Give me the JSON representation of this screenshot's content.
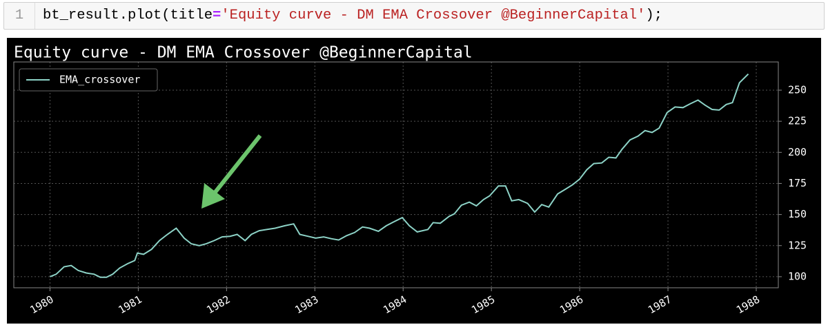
{
  "code": {
    "line_number": "1",
    "tokens": [
      "bt_result.plot(title",
      "=",
      "'Equity curve - DM EMA Crossover @BeginnerCapital'",
      ");"
    ]
  },
  "chart_data": {
    "type": "line",
    "title": "Equity curve - DM EMA Crossover @BeginnerCapital",
    "x": [
      1980.0,
      1980.07,
      1980.16,
      1980.24,
      1980.32,
      1980.41,
      1980.5,
      1980.57,
      1980.64,
      1980.71,
      1980.79,
      1980.88,
      1980.96,
      1980.99,
      1981.06,
      1981.15,
      1981.24,
      1981.33,
      1981.43,
      1981.52,
      1981.6,
      1981.69,
      1981.77,
      1981.86,
      1981.95,
      1982.04,
      1982.12,
      1982.21,
      1982.28,
      1982.37,
      1982.46,
      1982.55,
      1982.66,
      1982.76,
      1982.83,
      1982.92,
      1983.01,
      1983.1,
      1983.19,
      1983.27,
      1983.36,
      1983.45,
      1983.54,
      1983.62,
      1983.72,
      1983.81,
      1983.89,
      1983.99,
      1984.07,
      1984.16,
      1984.28,
      1984.34,
      1984.42,
      1984.52,
      1984.58,
      1984.66,
      1984.75,
      1984.83,
      1984.91,
      1984.98,
      1985.08,
      1985.16,
      1985.23,
      1985.31,
      1985.41,
      1985.49,
      1985.57,
      1985.65,
      1985.75,
      1985.83,
      1985.92,
      1986.0,
      1986.08,
      1986.16,
      1986.25,
      1986.33,
      1986.41,
      1986.48,
      1986.57,
      1986.66,
      1986.74,
      1986.82,
      1986.9,
      1986.99,
      1987.08,
      1987.17,
      1987.25,
      1987.34,
      1987.42,
      1987.5,
      1987.58,
      1987.66,
      1987.73,
      1987.81,
      1987.91
    ],
    "series": [
      {
        "name": "EMA_crossover",
        "color": "#8dd3c7",
        "values": [
          100,
          102,
          108,
          109,
          105,
          103,
          102,
          99.5,
          99.5,
          102,
          107,
          110.5,
          113,
          119,
          118,
          122,
          129,
          134,
          139,
          131,
          126.5,
          125,
          126.5,
          129,
          132,
          132.5,
          134,
          129,
          134,
          137,
          138,
          139,
          141,
          142.5,
          134,
          132.5,
          131,
          132,
          130.5,
          129.5,
          133,
          135.5,
          140,
          139,
          136.5,
          141,
          144,
          147.5,
          141,
          136,
          138,
          143.5,
          143,
          148.5,
          150.5,
          157.5,
          160,
          157,
          162,
          165,
          173,
          173,
          161,
          162,
          159,
          152,
          158,
          156,
          166.5,
          170,
          174,
          178.5,
          186,
          191,
          191.5,
          196,
          195.5,
          202.5,
          210,
          213,
          217.5,
          216,
          219.5,
          232,
          236.5,
          236,
          239,
          242,
          238,
          234.5,
          234,
          238.5,
          240,
          256,
          263
        ]
      }
    ],
    "xlim": [
      1979.59,
      1988.25
    ],
    "xticks": [
      1980,
      1981,
      1982,
      1983,
      1984,
      1985,
      1986,
      1987,
      1988
    ],
    "ylim": [
      91.1,
      272.7
    ],
    "yticks": [
      100,
      125,
      150,
      175,
      200,
      225,
      250
    ],
    "grid": true,
    "legend": "upper left"
  }
}
